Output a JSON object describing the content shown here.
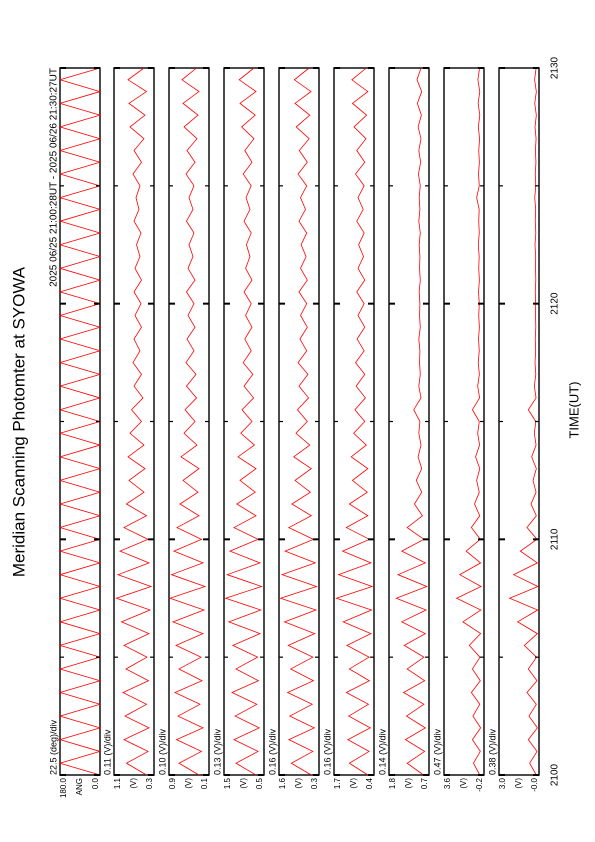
{
  "title": "Meridian Scanning Photomter at SYOWA",
  "subtitle": "2025 06/25 21:00:28UT - 2025 06/26 21:30:27UT",
  "x_axis": {
    "label": "TIME(UT)",
    "xlim": [
      2100,
      2130
    ],
    "xticks": [
      2100,
      2110,
      2120,
      2130
    ],
    "minor_xticks": [
      2105,
      2115,
      2125
    ],
    "x": [
      2100,
      2100.5,
      2101,
      2101.5,
      2102,
      2102.5,
      2103,
      2103.5,
      2104,
      2104.5,
      2105,
      2105.5,
      2106,
      2106.5,
      2107,
      2107.5,
      2108,
      2108.5,
      2109,
      2109.5,
      2110,
      2110.5,
      2111,
      2111.5,
      2112,
      2112.5,
      2113,
      2113.5,
      2114,
      2114.5,
      2115,
      2115.5,
      2116,
      2116.5,
      2117,
      2117.5,
      2118,
      2118.5,
      2119,
      2119.5,
      2120,
      2120.5,
      2121,
      2121.5,
      2122,
      2122.5,
      2123,
      2123.5,
      2124,
      2124.5,
      2125,
      2125.5,
      2126,
      2126.5,
      2127,
      2127.5,
      2128,
      2128.5,
      2129,
      2129.5,
      2130
    ]
  },
  "chart_data": [
    {
      "type": "line",
      "scale": "22.5 (deg)/div",
      "label": "ANG",
      "ylim": [
        0,
        180
      ],
      "yticks": [
        {
          "value": 0,
          "label": "0.0"
        },
        {
          "value": 180,
          "label": "180.0"
        }
      ],
      "series": [
        {
          "color": "#ff0000",
          "values": [
            0,
            180,
            0,
            180,
            0,
            180,
            0,
            180,
            0,
            180,
            0,
            180,
            0,
            180,
            0,
            180,
            0,
            180,
            0,
            180,
            0,
            180,
            0,
            180,
            0,
            180,
            0,
            180,
            0,
            180,
            0,
            180,
            0,
            180,
            0,
            180,
            0,
            180,
            0,
            180,
            0,
            180,
            0,
            180,
            0,
            180,
            0,
            180,
            0,
            180,
            0,
            180,
            0,
            180,
            0,
            180,
            0,
            180,
            0,
            180,
            0
          ]
        }
      ]
    },
    {
      "type": "line",
      "scale": "0.11 (V)/div",
      "label": "(V)",
      "ylim": [
        0.3,
        1.1
      ],
      "yticks": [
        0.3,
        1.1
      ],
      "series": [
        {
          "color": "#ff0000",
          "values": [
            0.45,
            0.85,
            0.42,
            0.9,
            0.4,
            0.88,
            0.45,
            0.92,
            0.41,
            0.86,
            0.44,
            0.9,
            0.4,
            0.95,
            0.38,
            1.05,
            0.36,
            1.02,
            0.4,
            0.98,
            0.42,
            0.9,
            0.45,
            0.85,
            0.5,
            0.8,
            0.48,
            0.82,
            0.5,
            0.78,
            0.55,
            0.75,
            0.52,
            0.7,
            0.55,
            0.72,
            0.58,
            0.7,
            0.55,
            0.68,
            0.56,
            0.7,
            0.55,
            0.68,
            0.58,
            0.65,
            0.56,
            0.7,
            0.6,
            0.66,
            0.58,
            0.72,
            0.55,
            0.7,
            0.5,
            0.78,
            0.48,
            0.8,
            0.45,
            0.82,
            0.5
          ]
        }
      ]
    },
    {
      "type": "line",
      "scale": "0.10 (V)/div",
      "label": "(V)",
      "ylim": [
        0.1,
        0.9
      ],
      "yticks": [
        0.1,
        0.9
      ],
      "series": [
        {
          "color": "#ff0000",
          "values": [
            0.3,
            0.7,
            0.25,
            0.75,
            0.22,
            0.72,
            0.28,
            0.78,
            0.24,
            0.7,
            0.26,
            0.76,
            0.22,
            0.82,
            0.2,
            0.88,
            0.18,
            0.85,
            0.22,
            0.8,
            0.25,
            0.74,
            0.3,
            0.68,
            0.32,
            0.62,
            0.3,
            0.66,
            0.34,
            0.6,
            0.38,
            0.58,
            0.35,
            0.55,
            0.36,
            0.56,
            0.4,
            0.54,
            0.38,
            0.52,
            0.4,
            0.55,
            0.38,
            0.52,
            0.42,
            0.5,
            0.4,
            0.55,
            0.42,
            0.5,
            0.4,
            0.56,
            0.38,
            0.54,
            0.34,
            0.6,
            0.32,
            0.62,
            0.3,
            0.64,
            0.35
          ]
        }
      ]
    },
    {
      "type": "line",
      "scale": "0.13 (V)/div",
      "label": "(V)",
      "ylim": [
        0.5,
        1.5
      ],
      "yticks": [
        0.5,
        1.5
      ],
      "series": [
        {
          "color": "#ff0000",
          "values": [
            0.7,
            1.2,
            0.65,
            1.25,
            0.62,
            1.22,
            0.68,
            1.3,
            0.64,
            1.2,
            0.66,
            1.28,
            0.6,
            1.38,
            0.58,
            1.46,
            0.56,
            1.42,
            0.6,
            1.35,
            0.65,
            1.25,
            0.7,
            1.18,
            0.72,
            1.1,
            0.7,
            1.15,
            0.74,
            1.08,
            0.8,
            1.05,
            0.76,
            1.0,
            0.78,
            1.02,
            0.82,
            0.98,
            0.8,
            0.96,
            0.82,
            1.0,
            0.8,
            0.96,
            0.85,
            0.94,
            0.82,
            1.0,
            0.85,
            0.95,
            0.82,
            1.02,
            0.8,
            0.98,
            0.75,
            1.06,
            0.72,
            1.1,
            0.7,
            1.12,
            0.75
          ]
        }
      ]
    },
    {
      "type": "line",
      "scale": "0.16 (V)/div",
      "label": "(V)",
      "ylim": [
        0.3,
        1.6
      ],
      "yticks": [
        0.3,
        1.6
      ],
      "series": [
        {
          "color": "#ff0000",
          "values": [
            0.55,
            1.2,
            0.5,
            1.28,
            0.45,
            1.25,
            0.52,
            1.32,
            0.48,
            1.22,
            0.5,
            1.3,
            0.44,
            1.42,
            0.4,
            1.55,
            0.38,
            1.5,
            0.42,
            1.4,
            0.48,
            1.28,
            0.55,
            1.18,
            0.58,
            1.08,
            0.55,
            1.12,
            0.6,
            1.05,
            0.68,
            1.0,
            0.64,
            0.95,
            0.66,
            0.98,
            0.7,
            0.92,
            0.68,
            0.9,
            0.7,
            0.95,
            0.68,
            0.9,
            0.72,
            0.88,
            0.7,
            0.95,
            0.74,
            0.9,
            0.7,
            0.98,
            0.68,
            0.94,
            0.62,
            1.04,
            0.6,
            1.08,
            0.56,
            1.1,
            0.62
          ]
        }
      ]
    },
    {
      "type": "line",
      "scale": "0.16 (V)/div",
      "label": "(V)",
      "ylim": [
        0.4,
        1.7
      ],
      "yticks": [
        0.4,
        1.7
      ],
      "series": [
        {
          "color": "#ff0000",
          "values": [
            0.6,
            1.2,
            0.56,
            1.25,
            0.52,
            1.22,
            0.58,
            1.3,
            0.55,
            1.2,
            0.56,
            1.28,
            0.5,
            1.4,
            0.48,
            1.62,
            0.46,
            1.55,
            0.5,
            1.42,
            0.55,
            1.3,
            0.6,
            1.2,
            0.62,
            1.1,
            0.6,
            1.14,
            0.65,
            1.06,
            0.7,
            1.02,
            0.68,
            0.98,
            0.7,
            1.0,
            0.72,
            0.95,
            0.7,
            0.92,
            0.72,
            0.96,
            0.7,
            0.92,
            0.74,
            0.9,
            0.72,
            0.96,
            0.75,
            0.92,
            0.72,
            1.0,
            0.7,
            0.96,
            0.66,
            1.05,
            0.64,
            1.1,
            0.6,
            1.12,
            0.65
          ]
        }
      ]
    },
    {
      "type": "line",
      "scale": "0.14 (V)/div",
      "label": "(V)",
      "ylim": [
        0.7,
        1.8
      ],
      "yticks": [
        0.7,
        1.8
      ],
      "series": [
        {
          "color": "#ff0000",
          "values": [
            0.85,
            1.3,
            0.82,
            1.35,
            0.8,
            1.32,
            0.84,
            1.4,
            0.82,
            1.3,
            0.84,
            1.38,
            0.8,
            1.45,
            0.78,
            1.6,
            0.76,
            1.55,
            0.8,
            1.45,
            0.84,
            1.3,
            0.88,
            1.1,
            0.9,
            1.05,
            0.9,
            1.0,
            0.92,
            0.98,
            0.95,
            1.12,
            0.92,
            0.98,
            0.94,
            0.96,
            0.95,
            0.98,
            0.94,
            0.96,
            0.95,
            0.97,
            0.94,
            0.96,
            0.95,
            0.97,
            0.94,
            0.98,
            0.95,
            0.97,
            0.94,
            0.99,
            0.93,
            0.98,
            0.92,
            1.0,
            0.91,
            1.02,
            0.9,
            1.03,
            0.92
          ]
        }
      ]
    },
    {
      "type": "line",
      "scale": "0.47 (V)/div",
      "label": "(V)",
      "ylim": [
        -0.2,
        3.6
      ],
      "yticks": [
        -0.2,
        3.6
      ],
      "series": [
        {
          "color": "#ff0000",
          "values": [
            0.2,
            0.8,
            0.15,
            0.9,
            0.12,
            0.85,
            0.2,
            1.0,
            0.15,
            0.9,
            0.18,
            1.2,
            0.12,
            1.8,
            0.1,
            2.4,
            0.08,
            2.1,
            0.12,
            1.5,
            0.15,
            1.0,
            0.2,
            0.7,
            0.25,
            0.5,
            0.2,
            0.6,
            0.22,
            0.4,
            0.25,
            0.9,
            0.22,
            0.4,
            0.24,
            0.35,
            0.25,
            0.32,
            0.24,
            0.3,
            0.25,
            0.32,
            0.24,
            0.3,
            0.26,
            0.34,
            0.25,
            0.3,
            0.26,
            0.5,
            0.25,
            0.32,
            0.24,
            0.3,
            0.22,
            0.34,
            0.2,
            0.36,
            0.2,
            0.38,
            0.22
          ]
        }
      ]
    },
    {
      "type": "line",
      "scale": "0.38 (V)/div",
      "label": "(V)",
      "ylim": [
        0,
        3.0
      ],
      "yticks": [
        {
          "value": 0,
          "label": "-0.0"
        },
        {
          "value": 3.0,
          "label": "3.0"
        }
      ],
      "series": [
        {
          "color": "#ff0000",
          "values": [
            0.2,
            0.7,
            0.15,
            0.8,
            0.12,
            0.75,
            0.2,
            0.9,
            0.15,
            0.8,
            0.18,
            1.1,
            0.12,
            1.6,
            0.1,
            2.2,
            0.08,
            1.9,
            0.12,
            1.4,
            0.15,
            0.9,
            0.2,
            0.6,
            0.22,
            0.45,
            0.2,
            0.55,
            0.22,
            0.35,
            0.24,
            0.8,
            0.22,
            0.35,
            0.24,
            0.3,
            0.25,
            0.28,
            0.24,
            0.26,
            0.25,
            0.28,
            0.24,
            0.26,
            0.25,
            0.3,
            0.24,
            0.28,
            0.25,
            0.32,
            0.24,
            0.28,
            0.23,
            0.27,
            0.22,
            0.3,
            0.2,
            0.32,
            0.2,
            0.33,
            0.22
          ]
        }
      ]
    }
  ]
}
